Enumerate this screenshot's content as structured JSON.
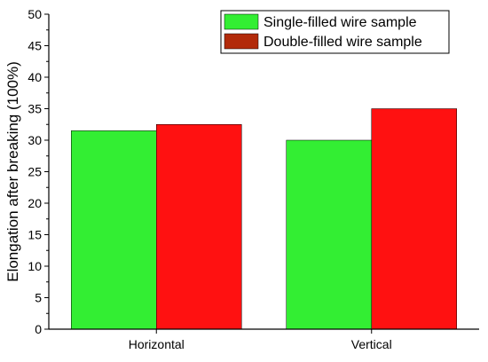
{
  "chart_data": {
    "type": "bar",
    "title": "",
    "xlabel": "",
    "ylabel": "Elongation after breaking (100%)",
    "ylim": [
      0,
      50
    ],
    "yticks": [
      0,
      5,
      10,
      15,
      20,
      25,
      30,
      35,
      40,
      45,
      50
    ],
    "categories": [
      "Horizontal",
      "Vertical"
    ],
    "series": [
      {
        "name": "Single-filled wire sample",
        "values": [
          31.5,
          30.0
        ],
        "color": "#33ee33"
      },
      {
        "name": "Double-filled wire sample",
        "values": [
          32.5,
          35.0
        ],
        "color": "#ff1111"
      }
    ],
    "legend_placement": "top-right",
    "legend_swatch_colors": [
      "#33ee33",
      "#b22a0a"
    ],
    "grid": false
  }
}
